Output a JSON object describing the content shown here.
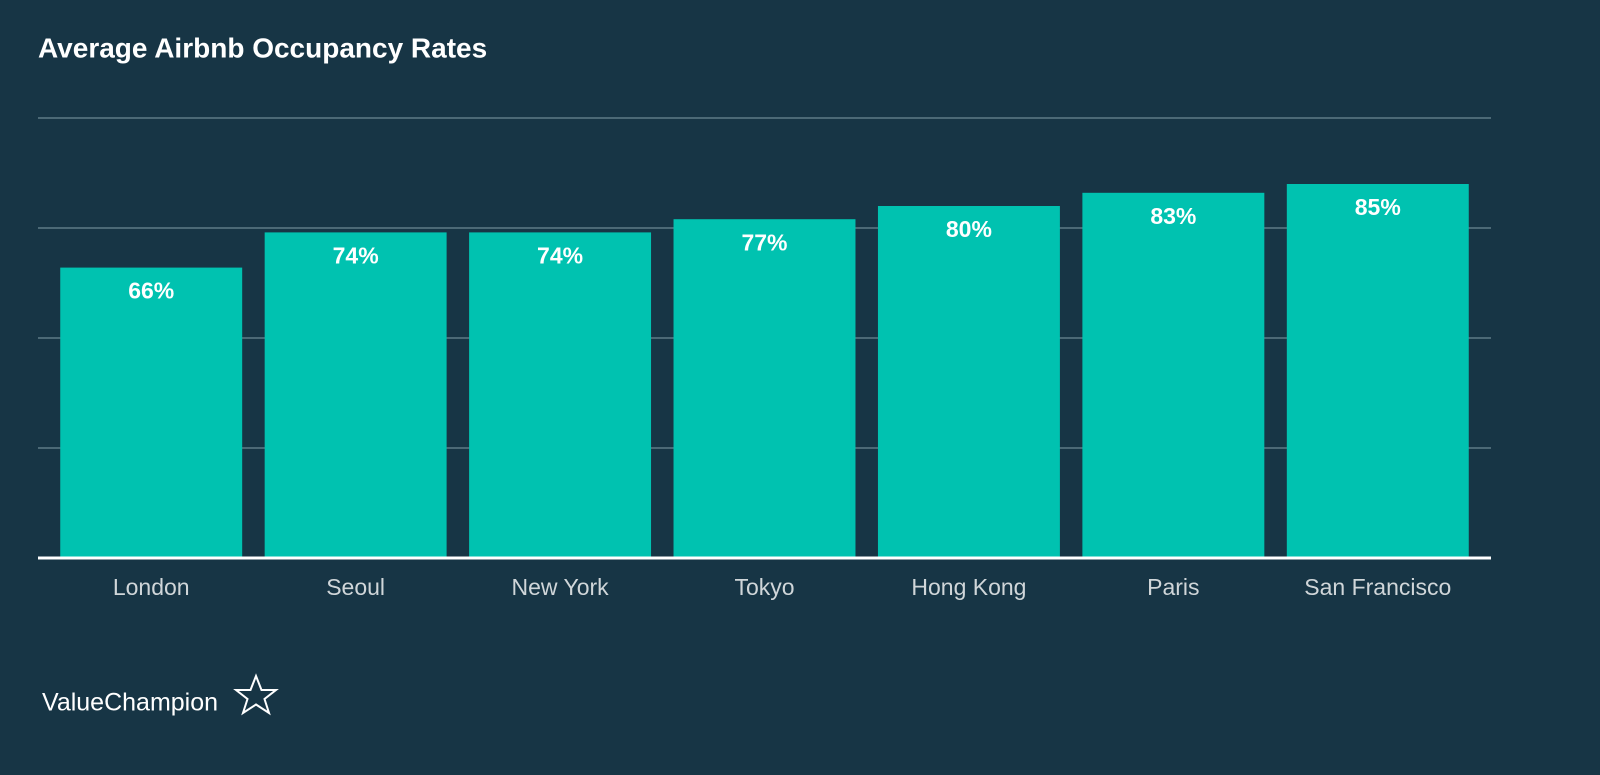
{
  "chart_data": {
    "type": "bar",
    "title": "Average Airbnb Occupancy Rates",
    "categories": [
      "London",
      "Seoul",
      "New York",
      "Tokyo",
      "Hong Kong",
      "Paris",
      "San Francisco"
    ],
    "values": [
      66,
      74,
      74,
      77,
      80,
      83,
      85
    ],
    "value_labels": [
      "66%",
      "74%",
      "74%",
      "77%",
      "80%",
      "83%",
      "85%"
    ],
    "color": "#00c2b0",
    "ylim": [
      0,
      100
    ],
    "yticks": [
      25,
      50,
      75,
      100
    ],
    "grid": true
  },
  "brand": "ValueChampion"
}
